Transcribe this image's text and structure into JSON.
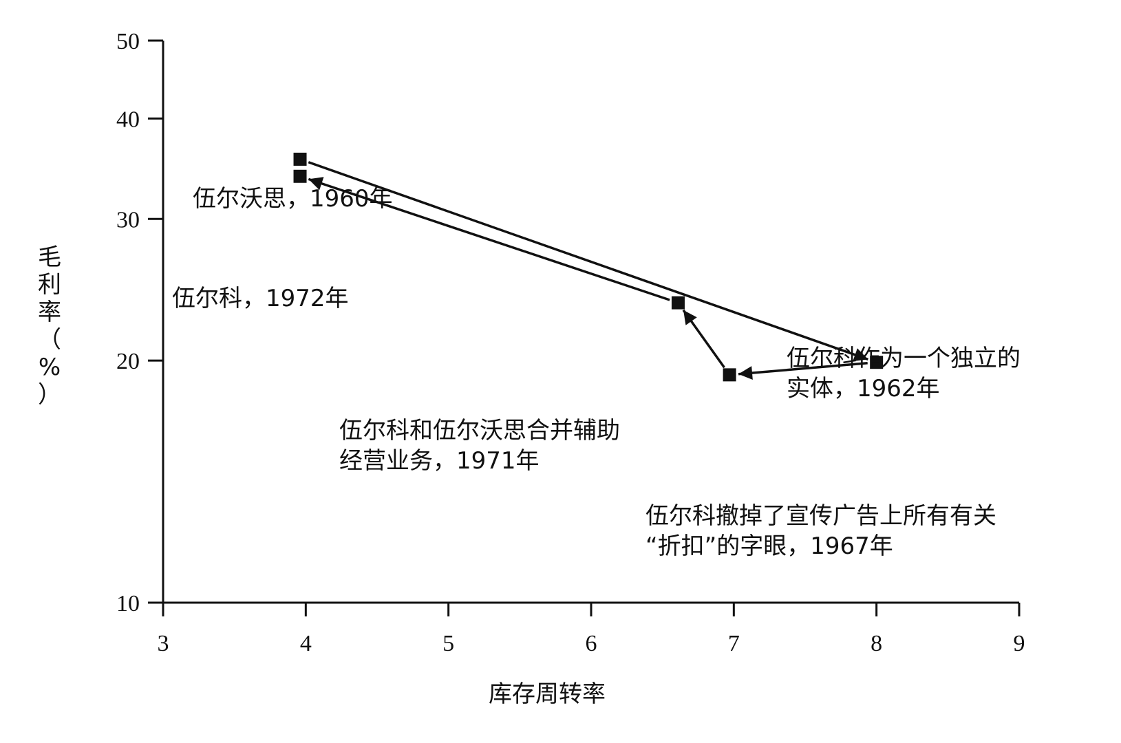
{
  "chart_data": {
    "type": "scatter",
    "title": "",
    "xlabel": "库存周转率",
    "ylabel": "毛利率（%）",
    "xlim": [
      3,
      9
    ],
    "ylim": [
      10,
      50
    ],
    "xticks": [
      3,
      4,
      5,
      6,
      7,
      8,
      9
    ],
    "yticks": [
      10,
      20,
      30,
      40,
      50
    ],
    "y_scale": "log",
    "grid": false,
    "legend": "none",
    "connected": true,
    "points": [
      {
        "x": 3.96,
        "y": 35.6,
        "label_lines": [
          "伍尔沃思，1960年"
        ]
      },
      {
        "x": 8.0,
        "y": 19.9,
        "label_lines": [
          "伍尔科作为一个独立的",
          "实体，1962年"
        ]
      },
      {
        "x": 6.97,
        "y": 19.2,
        "label_lines": [
          "伍尔科撤掉了宣传广告上所有有关",
          "“折扣”的字眼，1967年"
        ]
      },
      {
        "x": 6.61,
        "y": 23.6,
        "label_lines": [
          "伍尔科和伍尔沃思合并辅助",
          "经营业务，1971年"
        ]
      },
      {
        "x": 3.96,
        "y": 33.9,
        "label_lines": [
          "伍尔科，1972年"
        ]
      }
    ]
  }
}
